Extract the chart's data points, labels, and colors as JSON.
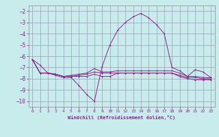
{
  "xlabel": "Windchill (Refroidissement éolien,°C)",
  "background_color": "#c8ecec",
  "grid_color": "#9999bb",
  "line_color": "#882288",
  "xlim": [
    -0.5,
    23.5
  ],
  "ylim": [
    -10.5,
    -1.5
  ],
  "yticks": [
    -10,
    -9,
    -8,
    -7,
    -6,
    -5,
    -4,
    -3,
    -2
  ],
  "xticks": [
    0,
    1,
    2,
    3,
    4,
    5,
    6,
    7,
    8,
    9,
    10,
    11,
    12,
    13,
    14,
    15,
    16,
    17,
    18,
    19,
    20,
    21,
    22,
    23
  ],
  "series1_x": [
    0,
    1,
    2,
    3,
    4,
    5,
    6,
    7,
    8,
    9,
    10,
    11,
    12,
    13,
    14,
    15,
    16,
    17,
    18,
    19,
    20,
    21,
    22,
    23
  ],
  "series1_y": [
    -6.3,
    -6.8,
    -7.5,
    -7.7,
    -7.9,
    -7.9,
    -8.6,
    -9.4,
    -10.0,
    -6.9,
    -5.0,
    -3.7,
    -3.0,
    -2.5,
    -2.2,
    -2.6,
    -3.2,
    -4.0,
    -7.0,
    -7.3,
    -7.8,
    -7.2,
    -7.4,
    -7.9
  ],
  "series2_x": [
    0,
    1,
    2,
    3,
    4,
    5,
    6,
    7,
    8,
    9,
    10,
    11,
    12,
    13,
    14,
    15,
    16,
    17,
    18,
    19,
    20,
    21,
    22,
    23
  ],
  "series2_y": [
    -6.3,
    -7.5,
    -7.5,
    -7.6,
    -7.8,
    -7.7,
    -7.6,
    -7.5,
    -7.1,
    -7.4,
    -7.4,
    -7.3,
    -7.3,
    -7.3,
    -7.3,
    -7.3,
    -7.3,
    -7.3,
    -7.3,
    -7.5,
    -7.8,
    -7.8,
    -7.9,
    -7.9
  ],
  "series3_x": [
    0,
    1,
    2,
    3,
    4,
    5,
    6,
    7,
    8,
    9,
    10,
    11,
    12,
    13,
    14,
    15,
    16,
    17,
    18,
    19,
    20,
    21,
    22,
    23
  ],
  "series3_y": [
    -6.3,
    -7.5,
    -7.5,
    -7.6,
    -7.8,
    -7.8,
    -7.7,
    -7.6,
    -7.4,
    -7.5,
    -7.5,
    -7.5,
    -7.5,
    -7.5,
    -7.5,
    -7.5,
    -7.5,
    -7.5,
    -7.5,
    -7.7,
    -7.9,
    -7.9,
    -8.0,
    -8.0
  ],
  "series4_x": [
    0,
    1,
    2,
    3,
    4,
    5,
    6,
    7,
    8,
    9,
    10,
    11,
    12,
    13,
    14,
    15,
    16,
    17,
    18,
    19,
    20,
    21,
    22,
    23
  ],
  "series4_y": [
    -6.3,
    -7.5,
    -7.5,
    -7.6,
    -7.8,
    -7.8,
    -7.8,
    -7.8,
    -7.6,
    -7.8,
    -7.8,
    -7.5,
    -7.5,
    -7.5,
    -7.5,
    -7.5,
    -7.5,
    -7.5,
    -7.5,
    -7.8,
    -8.0,
    -8.1,
    -8.1,
    -8.1
  ]
}
